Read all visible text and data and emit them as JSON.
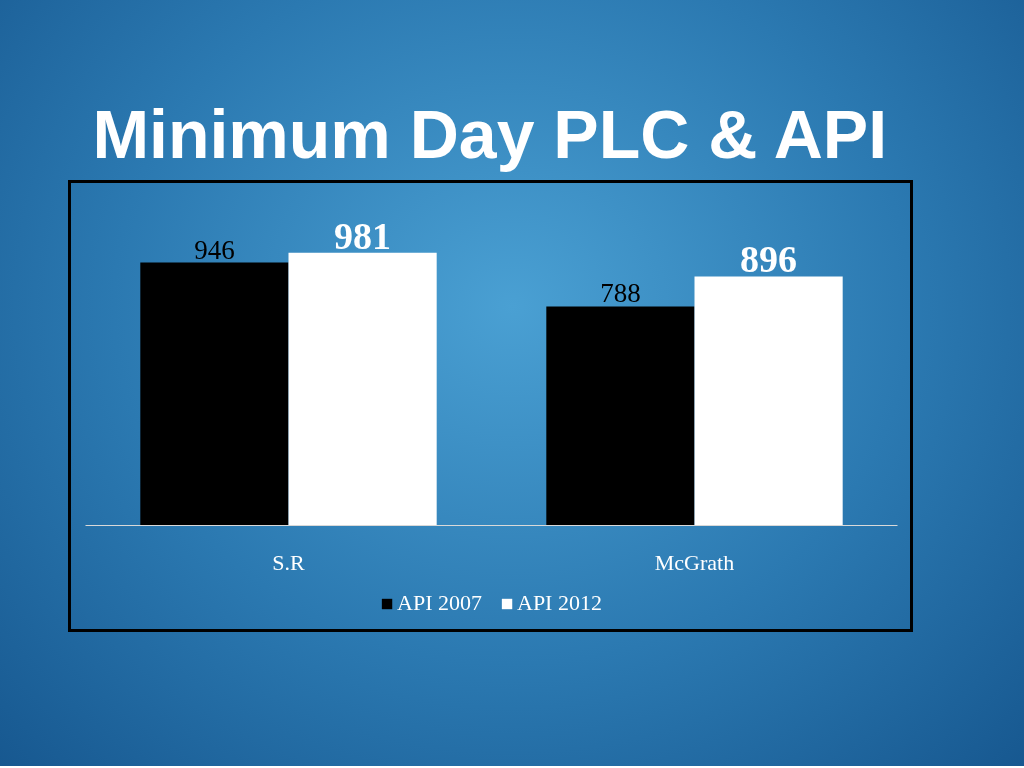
{
  "chart_data": {
    "type": "bar",
    "title": "Minimum Day PLC & API",
    "categories": [
      "S.R",
      "McGrath"
    ],
    "series": [
      {
        "name": "API 2007",
        "color": "#000000",
        "values": [
          946,
          788
        ]
      },
      {
        "name": "API 2012",
        "color": "#ffffff",
        "values": [
          981,
          896
        ]
      }
    ],
    "data_labels": true,
    "legend": "bottom",
    "tick_labels": "x",
    "grid": false
  }
}
